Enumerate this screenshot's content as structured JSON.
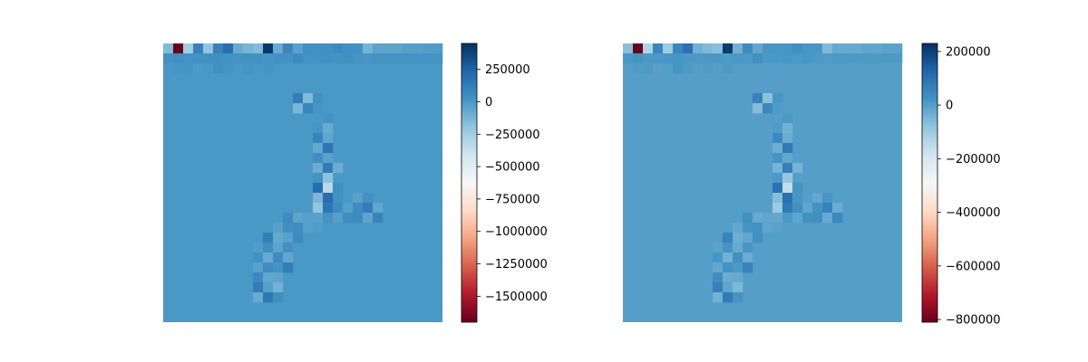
{
  "chart_data": [
    {
      "type": "heatmap",
      "title": "",
      "xlabel": "",
      "ylabel": "",
      "grid": false,
      "axes_visible": false,
      "colormap": "RdBu",
      "colormap_stops": [
        "#67001f",
        "#b2182b",
        "#d6604d",
        "#f4a582",
        "#fddbc7",
        "#f7f7f7",
        "#d1e5f0",
        "#92c5de",
        "#4393c3",
        "#2166ac",
        "#053061"
      ],
      "rows": 28,
      "cols": 28,
      "vmin": -1700000,
      "vmax": 450000,
      "background_value": 0,
      "colorbar_ticks": [
        "250000",
        "0",
        "−250000",
        "−500000",
        "−750000",
        "−1000000",
        "−1250000",
        "−1500000"
      ],
      "colorbar_tick_values": [
        250000,
        0,
        -250000,
        -500000,
        -750000,
        -1000000,
        -1250000,
        -1500000
      ],
      "cells": [
        [
          0,
          0,
          -150000
        ],
        [
          0,
          1,
          -1700000
        ],
        [
          0,
          2,
          -250000
        ],
        [
          0,
          3,
          100000
        ],
        [
          0,
          4,
          -200000
        ],
        [
          0,
          5,
          100000
        ],
        [
          0,
          6,
          200000
        ],
        [
          0,
          7,
          -80000
        ],
        [
          0,
          8,
          -120000
        ],
        [
          0,
          9,
          -150000
        ],
        [
          0,
          10,
          420000
        ],
        [
          0,
          11,
          -80000
        ],
        [
          0,
          12,
          80000
        ],
        [
          0,
          13,
          -40000
        ],
        [
          0,
          14,
          30000
        ],
        [
          0,
          15,
          30000
        ],
        [
          0,
          16,
          30000
        ],
        [
          0,
          17,
          60000
        ],
        [
          0,
          18,
          30000
        ],
        [
          0,
          19,
          30000
        ],
        [
          0,
          20,
          -120000
        ],
        [
          0,
          21,
          -50000
        ],
        [
          0,
          22,
          -50000
        ],
        [
          0,
          23,
          -50000
        ],
        [
          0,
          24,
          -30000
        ],
        [
          0,
          25,
          -30000
        ],
        [
          0,
          26,
          -20000
        ],
        [
          0,
          27,
          -20000
        ],
        [
          1,
          0,
          25000
        ],
        [
          1,
          1,
          40000
        ],
        [
          1,
          2,
          20000
        ],
        [
          1,
          3,
          25000
        ],
        [
          1,
          4,
          30000
        ],
        [
          1,
          5,
          35000
        ],
        [
          1,
          6,
          25000
        ],
        [
          1,
          7,
          20000
        ],
        [
          1,
          8,
          25000
        ],
        [
          1,
          9,
          25000
        ],
        [
          1,
          10,
          15000
        ],
        [
          1,
          11,
          25000
        ],
        [
          1,
          12,
          20000
        ],
        [
          1,
          13,
          60000
        ],
        [
          1,
          14,
          20000
        ],
        [
          1,
          15,
          25000
        ],
        [
          1,
          16,
          30000
        ],
        [
          1,
          17,
          20000
        ],
        [
          1,
          18,
          30000
        ],
        [
          1,
          19,
          15000
        ],
        [
          1,
          20,
          10000
        ],
        [
          1,
          21,
          20000
        ],
        [
          1,
          22,
          20000
        ],
        [
          1,
          23,
          15000
        ],
        [
          1,
          24,
          20000
        ],
        [
          1,
          25,
          15000
        ],
        [
          1,
          26,
          20000
        ],
        [
          1,
          27,
          15000
        ],
        [
          2,
          1,
          10000
        ],
        [
          2,
          2,
          15000
        ],
        [
          2,
          3,
          -10000
        ],
        [
          2,
          5,
          35000
        ],
        [
          2,
          6,
          15000
        ],
        [
          2,
          8,
          10000
        ],
        [
          2,
          10,
          15000
        ],
        [
          5,
          13,
          120000
        ],
        [
          5,
          14,
          -150000
        ],
        [
          5,
          15,
          30000
        ],
        [
          6,
          13,
          -130000
        ],
        [
          6,
          14,
          90000
        ],
        [
          6,
          15,
          10000
        ],
        [
          7,
          16,
          20000
        ],
        [
          8,
          15,
          10000
        ],
        [
          8,
          16,
          -80000
        ],
        [
          9,
          15,
          90000
        ],
        [
          9,
          16,
          -60000
        ],
        [
          10,
          15,
          -70000
        ],
        [
          10,
          16,
          160000
        ],
        [
          11,
          15,
          40000
        ],
        [
          11,
          16,
          -40000
        ],
        [
          12,
          15,
          -90000
        ],
        [
          12,
          16,
          130000
        ],
        [
          12,
          17,
          -90000
        ],
        [
          13,
          15,
          20000
        ],
        [
          13,
          16,
          -180000
        ],
        [
          14,
          15,
          200000
        ],
        [
          14,
          16,
          -330000
        ],
        [
          14,
          17,
          40000
        ],
        [
          15,
          15,
          -130000
        ],
        [
          15,
          16,
          200000
        ],
        [
          15,
          17,
          30000
        ],
        [
          15,
          19,
          -40000
        ],
        [
          15,
          20,
          30000
        ],
        [
          16,
          15,
          -200000
        ],
        [
          16,
          16,
          160000
        ],
        [
          16,
          17,
          60000
        ],
        [
          16,
          18,
          -30000
        ],
        [
          16,
          19,
          50000
        ],
        [
          16,
          20,
          120000
        ],
        [
          16,
          21,
          -60000
        ],
        [
          17,
          12,
          60000
        ],
        [
          17,
          13,
          -50000
        ],
        [
          17,
          14,
          -30000
        ],
        [
          17,
          15,
          -40000
        ],
        [
          17,
          16,
          20000
        ],
        [
          17,
          17,
          -30000
        ],
        [
          17,
          18,
          50000
        ],
        [
          17,
          19,
          60000
        ],
        [
          17,
          20,
          -50000
        ],
        [
          17,
          21,
          90000
        ],
        [
          18,
          11,
          -40000
        ],
        [
          18,
          12,
          40000
        ],
        [
          18,
          13,
          50000
        ],
        [
          18,
          14,
          -30000
        ],
        [
          18,
          15,
          -20000
        ],
        [
          19,
          10,
          120000
        ],
        [
          19,
          11,
          -70000
        ],
        [
          19,
          12,
          -40000
        ],
        [
          19,
          13,
          60000
        ],
        [
          20,
          9,
          -20000
        ],
        [
          20,
          10,
          40000
        ],
        [
          20,
          11,
          -50000
        ],
        [
          20,
          12,
          30000
        ],
        [
          21,
          9,
          30000
        ],
        [
          21,
          10,
          -80000
        ],
        [
          21,
          11,
          60000
        ],
        [
          21,
          12,
          -60000
        ],
        [
          22,
          9,
          -40000
        ],
        [
          22,
          10,
          50000
        ],
        [
          22,
          11,
          20000
        ],
        [
          22,
          12,
          120000
        ],
        [
          23,
          9,
          70000
        ],
        [
          23,
          10,
          -60000
        ],
        [
          23,
          11,
          -50000
        ],
        [
          24,
          9,
          130000
        ],
        [
          24,
          10,
          -30000
        ],
        [
          24,
          11,
          -110000
        ],
        [
          25,
          9,
          -80000
        ],
        [
          25,
          10,
          150000
        ],
        [
          25,
          11,
          40000
        ]
      ]
    },
    {
      "type": "heatmap",
      "title": "",
      "xlabel": "",
      "ylabel": "",
      "grid": false,
      "axes_visible": false,
      "colormap": "RdBu",
      "colormap_stops": [
        "#67001f",
        "#b2182b",
        "#d6604d",
        "#f4a582",
        "#fddbc7",
        "#f7f7f7",
        "#d1e5f0",
        "#92c5de",
        "#4393c3",
        "#2166ac",
        "#053061"
      ],
      "rows": 28,
      "cols": 28,
      "vmin": -810000,
      "vmax": 230000,
      "background_value": 0,
      "colorbar_ticks": [
        "200000",
        "0",
        "−200000",
        "−400000",
        "−600000",
        "−800000"
      ],
      "colorbar_tick_values": [
        200000,
        0,
        -200000,
        -400000,
        -600000,
        -800000
      ],
      "cells": [
        [
          0,
          0,
          -70000
        ],
        [
          0,
          1,
          -810000
        ],
        [
          0,
          2,
          -130000
        ],
        [
          0,
          3,
          50000
        ],
        [
          0,
          4,
          -100000
        ],
        [
          0,
          5,
          50000
        ],
        [
          0,
          6,
          100000
        ],
        [
          0,
          7,
          -40000
        ],
        [
          0,
          8,
          -60000
        ],
        [
          0,
          9,
          -70000
        ],
        [
          0,
          10,
          210000
        ],
        [
          0,
          11,
          -40000
        ],
        [
          0,
          12,
          40000
        ],
        [
          0,
          13,
          -20000
        ],
        [
          0,
          14,
          15000
        ],
        [
          0,
          15,
          15000
        ],
        [
          0,
          16,
          15000
        ],
        [
          0,
          17,
          30000
        ],
        [
          0,
          18,
          15000
        ],
        [
          0,
          19,
          15000
        ],
        [
          0,
          20,
          -60000
        ],
        [
          0,
          21,
          -25000
        ],
        [
          0,
          22,
          -25000
        ],
        [
          0,
          23,
          -25000
        ],
        [
          0,
          24,
          -15000
        ],
        [
          0,
          25,
          -15000
        ],
        [
          0,
          26,
          -10000
        ],
        [
          0,
          27,
          -10000
        ],
        [
          1,
          0,
          12000
        ],
        [
          1,
          1,
          20000
        ],
        [
          1,
          2,
          10000
        ],
        [
          1,
          3,
          12000
        ],
        [
          1,
          4,
          15000
        ],
        [
          1,
          5,
          18000
        ],
        [
          1,
          6,
          12000
        ],
        [
          1,
          7,
          10000
        ],
        [
          1,
          8,
          12000
        ],
        [
          1,
          9,
          12000
        ],
        [
          1,
          10,
          8000
        ],
        [
          1,
          11,
          12000
        ],
        [
          1,
          12,
          10000
        ],
        [
          1,
          13,
          30000
        ],
        [
          1,
          14,
          10000
        ],
        [
          1,
          15,
          12000
        ],
        [
          1,
          16,
          15000
        ],
        [
          1,
          17,
          10000
        ],
        [
          1,
          18,
          15000
        ],
        [
          1,
          19,
          8000
        ],
        [
          1,
          20,
          5000
        ],
        [
          1,
          21,
          10000
        ],
        [
          1,
          22,
          10000
        ],
        [
          1,
          23,
          8000
        ],
        [
          1,
          24,
          10000
        ],
        [
          1,
          25,
          8000
        ],
        [
          1,
          26,
          10000
        ],
        [
          1,
          27,
          8000
        ],
        [
          2,
          1,
          5000
        ],
        [
          2,
          2,
          8000
        ],
        [
          2,
          3,
          -5000
        ],
        [
          2,
          5,
          18000
        ],
        [
          2,
          6,
          8000
        ],
        [
          2,
          8,
          5000
        ],
        [
          2,
          10,
          8000
        ],
        [
          5,
          13,
          60000
        ],
        [
          5,
          14,
          -75000
        ],
        [
          5,
          15,
          15000
        ],
        [
          6,
          13,
          -65000
        ],
        [
          6,
          14,
          45000
        ],
        [
          6,
          15,
          5000
        ],
        [
          7,
          16,
          10000
        ],
        [
          8,
          15,
          5000
        ],
        [
          8,
          16,
          -40000
        ],
        [
          9,
          15,
          45000
        ],
        [
          9,
          16,
          -30000
        ],
        [
          10,
          15,
          -35000
        ],
        [
          10,
          16,
          80000
        ],
        [
          11,
          15,
          20000
        ],
        [
          11,
          16,
          -20000
        ],
        [
          12,
          15,
          -45000
        ],
        [
          12,
          16,
          65000
        ],
        [
          12,
          17,
          -45000
        ],
        [
          13,
          15,
          10000
        ],
        [
          13,
          16,
          -90000
        ],
        [
          14,
          15,
          100000
        ],
        [
          14,
          16,
          -160000
        ],
        [
          14,
          17,
          20000
        ],
        [
          15,
          15,
          -65000
        ],
        [
          15,
          16,
          100000
        ],
        [
          15,
          17,
          15000
        ],
        [
          15,
          19,
          -20000
        ],
        [
          15,
          20,
          15000
        ],
        [
          16,
          15,
          -100000
        ],
        [
          16,
          16,
          80000
        ],
        [
          16,
          17,
          30000
        ],
        [
          16,
          18,
          -15000
        ],
        [
          16,
          19,
          25000
        ],
        [
          16,
          20,
          60000
        ],
        [
          16,
          21,
          -30000
        ],
        [
          17,
          12,
          30000
        ],
        [
          17,
          13,
          -25000
        ],
        [
          17,
          14,
          -15000
        ],
        [
          17,
          15,
          -20000
        ],
        [
          17,
          16,
          10000
        ],
        [
          17,
          17,
          -15000
        ],
        [
          17,
          18,
          25000
        ],
        [
          17,
          19,
          30000
        ],
        [
          17,
          20,
          -25000
        ],
        [
          17,
          21,
          45000
        ],
        [
          18,
          11,
          -20000
        ],
        [
          18,
          12,
          20000
        ],
        [
          18,
          13,
          25000
        ],
        [
          18,
          14,
          -15000
        ],
        [
          18,
          15,
          -10000
        ],
        [
          19,
          10,
          60000
        ],
        [
          19,
          11,
          -35000
        ],
        [
          19,
          12,
          -20000
        ],
        [
          19,
          13,
          30000
        ],
        [
          20,
          9,
          -10000
        ],
        [
          20,
          10,
          20000
        ],
        [
          20,
          11,
          -25000
        ],
        [
          20,
          12,
          15000
        ],
        [
          21,
          9,
          15000
        ],
        [
          21,
          10,
          -40000
        ],
        [
          21,
          11,
          30000
        ],
        [
          21,
          12,
          -30000
        ],
        [
          22,
          9,
          -20000
        ],
        [
          22,
          10,
          25000
        ],
        [
          22,
          11,
          10000
        ],
        [
          22,
          12,
          60000
        ],
        [
          23,
          9,
          35000
        ],
        [
          23,
          10,
          -30000
        ],
        [
          23,
          11,
          -25000
        ],
        [
          24,
          9,
          65000
        ],
        [
          24,
          10,
          -15000
        ],
        [
          24,
          11,
          -55000
        ],
        [
          25,
          9,
          -40000
        ],
        [
          25,
          10,
          75000
        ],
        [
          25,
          11,
          20000
        ]
      ]
    }
  ]
}
